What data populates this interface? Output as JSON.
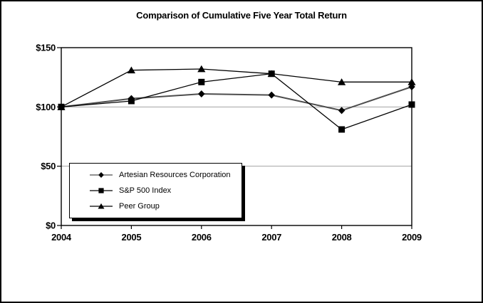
{
  "window": {
    "background": "#ffffff",
    "border_color": "#000000"
  },
  "chart_data": {
    "type": "line",
    "title": "Comparison of Cumulative Five Year Total Return",
    "categories": [
      "2004",
      "2005",
      "2006",
      "2007",
      "2008",
      "2009"
    ],
    "series": [
      {
        "name": "Artesian Resources Corporation",
        "marker": "diamond",
        "color": "#4d4d4d",
        "line_width": 2,
        "values": [
          100,
          107,
          111,
          110,
          97,
          117
        ]
      },
      {
        "name": "S&P 500 Index",
        "marker": "square",
        "color": "#000000",
        "line_width": 1.3,
        "values": [
          100,
          105,
          121,
          128,
          81,
          102
        ]
      },
      {
        "name": "Peer Group",
        "marker": "triangle",
        "color": "#000000",
        "line_width": 1.3,
        "values": [
          100,
          131,
          132,
          128,
          121,
          121
        ]
      }
    ],
    "xlabel": "",
    "ylabel": "",
    "ylim": [
      0,
      150
    ],
    "y_tick_values": [
      0,
      50,
      100,
      150
    ],
    "y_ticks": [
      "$0",
      "$50",
      "$100",
      "$150"
    ],
    "grid": "horizontal",
    "gridline_color": "#a3a3a3",
    "axis_color": "#000000",
    "marker_color": "#000000",
    "legend_position": "inside-bottom-left"
  }
}
